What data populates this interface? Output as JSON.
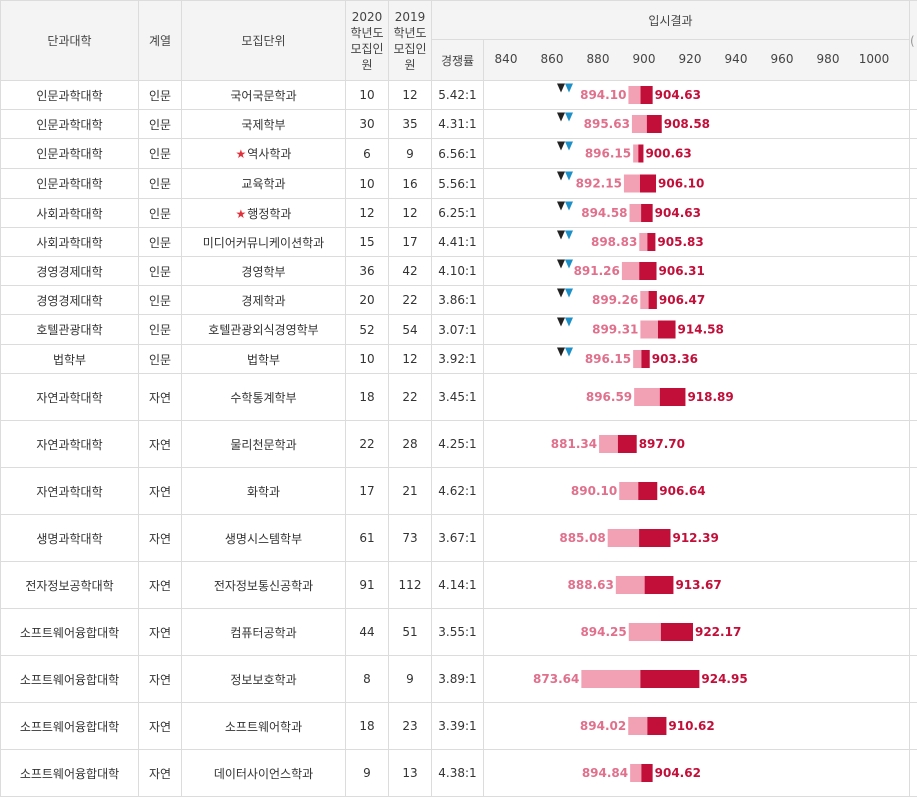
{
  "header": {
    "college": "단과대학",
    "track": "계열",
    "unit": "모집단위",
    "quota_2020": "2020 학년도 모집인원",
    "quota_2019": "2019 학년도 모집인원",
    "competition": "경쟁률",
    "results": "입시결과",
    "clipped_edge": "(",
    "scale_ticks": [
      "840",
      "860",
      "880",
      "900",
      "920",
      "940",
      "960",
      "980",
      "1000"
    ]
  },
  "colors": {
    "bar_low": "#f2a0b4",
    "bar_high": "#c20f3a",
    "label_low": "#e0708c",
    "label_high": "#c20f3a",
    "marker_dark": "#222222",
    "marker_blue": "#1e90c8",
    "star": "#e0323c"
  },
  "chart_data": {
    "type": "table",
    "title": "입시결과",
    "xlim": [
      830,
      1010
    ],
    "ticks": [
      840,
      860,
      880,
      900,
      920,
      940,
      960,
      980,
      1000
    ],
    "rows": [
      {
        "college": "인문과학대학",
        "track": "인문",
        "star": false,
        "unit": "국어국문학과",
        "q2020": "10",
        "q2019": "12",
        "rate": "5.42:1",
        "low": 894.1,
        "high": 904.63,
        "low_label": "894.10",
        "high_label": "904.63",
        "marker": true
      },
      {
        "college": "인문과학대학",
        "track": "인문",
        "star": false,
        "unit": "국제학부",
        "q2020": "30",
        "q2019": "35",
        "rate": "4.31:1",
        "low": 895.63,
        "high": 908.58,
        "low_label": "895.63",
        "high_label": "908.58",
        "marker": true
      },
      {
        "college": "인문과학대학",
        "track": "인문",
        "star": true,
        "unit": "역사학과",
        "q2020": "6",
        "q2019": "9",
        "rate": "6.56:1",
        "low": 896.15,
        "high": 900.63,
        "low_label": "896.15",
        "high_label": "900.63",
        "marker": true
      },
      {
        "college": "인문과학대학",
        "track": "인문",
        "star": false,
        "unit": "교육학과",
        "q2020": "10",
        "q2019": "16",
        "rate": "5.56:1",
        "low": 892.15,
        "high": 906.1,
        "low_label": "892.15",
        "high_label": "906.10",
        "marker": true
      },
      {
        "college": "사회과학대학",
        "track": "인문",
        "star": true,
        "unit": "행정학과",
        "q2020": "12",
        "q2019": "12",
        "rate": "6.25:1",
        "low": 894.58,
        "high": 904.63,
        "low_label": "894.58",
        "high_label": "904.63",
        "marker": true
      },
      {
        "college": "사회과학대학",
        "track": "인문",
        "star": false,
        "unit": "미디어커뮤니케이션학과",
        "q2020": "15",
        "q2019": "17",
        "rate": "4.41:1",
        "low": 898.83,
        "high": 905.83,
        "low_label": "898.83",
        "high_label": "905.83",
        "marker": true
      },
      {
        "college": "경영경제대학",
        "track": "인문",
        "star": false,
        "unit": "경영학부",
        "q2020": "36",
        "q2019": "42",
        "rate": "4.10:1",
        "low": 891.26,
        "high": 906.31,
        "low_label": "891.26",
        "high_label": "906.31",
        "marker": true
      },
      {
        "college": "경영경제대학",
        "track": "인문",
        "star": false,
        "unit": "경제학과",
        "q2020": "20",
        "q2019": "22",
        "rate": "3.86:1",
        "low": 899.26,
        "high": 906.47,
        "low_label": "899.26",
        "high_label": "906.47",
        "marker": true
      },
      {
        "college": "호텔관광대학",
        "track": "인문",
        "star": false,
        "unit": "호텔관광외식경영학부",
        "q2020": "52",
        "q2019": "54",
        "rate": "3.07:1",
        "low": 899.31,
        "high": 914.58,
        "low_label": "899.31",
        "high_label": "914.58",
        "marker": true
      },
      {
        "college": "법학부",
        "track": "인문",
        "star": false,
        "unit": "법학부",
        "q2020": "10",
        "q2019": "12",
        "rate": "3.92:1",
        "low": 896.15,
        "high": 903.36,
        "low_label": "896.15",
        "high_label": "903.36",
        "marker": true
      },
      {
        "college": "자연과학대학",
        "track": "자연",
        "star": false,
        "unit": "수학통계학부",
        "q2020": "18",
        "q2019": "22",
        "rate": "3.45:1",
        "low": 896.59,
        "high": 918.89,
        "low_label": "896.59",
        "high_label": "918.89",
        "marker": false
      },
      {
        "college": "자연과학대학",
        "track": "자연",
        "star": false,
        "unit": "물리천문학과",
        "q2020": "22",
        "q2019": "28",
        "rate": "4.25:1",
        "low": 881.34,
        "high": 897.7,
        "low_label": "881.34",
        "high_label": "897.70",
        "marker": false
      },
      {
        "college": "자연과학대학",
        "track": "자연",
        "star": false,
        "unit": "화학과",
        "q2020": "17",
        "q2019": "21",
        "rate": "4.62:1",
        "low": 890.1,
        "high": 906.64,
        "low_label": "890.10",
        "high_label": "906.64",
        "marker": false
      },
      {
        "college": "생명과학대학",
        "track": "자연",
        "star": false,
        "unit": "생명시스템학부",
        "q2020": "61",
        "q2019": "73",
        "rate": "3.67:1",
        "low": 885.08,
        "high": 912.39,
        "low_label": "885.08",
        "high_label": "912.39",
        "marker": false
      },
      {
        "college": "전자정보공학대학",
        "track": "자연",
        "star": false,
        "unit": "전자정보통신공학과",
        "q2020": "91",
        "q2019": "112",
        "rate": "4.14:1",
        "low": 888.63,
        "high": 913.67,
        "low_label": "888.63",
        "high_label": "913.67",
        "marker": false
      },
      {
        "college": "소프트웨어융합대학",
        "track": "자연",
        "star": false,
        "unit": "컴퓨터공학과",
        "q2020": "44",
        "q2019": "51",
        "rate": "3.55:1",
        "low": 894.25,
        "high": 922.17,
        "low_label": "894.25",
        "high_label": "922.17",
        "marker": false
      },
      {
        "college": "소프트웨어융합대학",
        "track": "자연",
        "star": false,
        "unit": "정보보호학과",
        "q2020": "8",
        "q2019": "9",
        "rate": "3.89:1",
        "low": 873.64,
        "high": 924.95,
        "low_label": "873.64",
        "high_label": "924.95",
        "marker": false
      },
      {
        "college": "소프트웨어융합대학",
        "track": "자연",
        "star": false,
        "unit": "소프트웨어학과",
        "q2020": "18",
        "q2019": "23",
        "rate": "3.39:1",
        "low": 894.02,
        "high": 910.62,
        "low_label": "894.02",
        "high_label": "910.62",
        "marker": false
      },
      {
        "college": "소프트웨어융합대학",
        "track": "자연",
        "star": false,
        "unit": "데이터사이언스학과",
        "q2020": "9",
        "q2019": "13",
        "rate": "4.38:1",
        "low": 894.84,
        "high": 904.62,
        "low_label": "894.84",
        "high_label": "904.62",
        "marker": false
      }
    ]
  }
}
